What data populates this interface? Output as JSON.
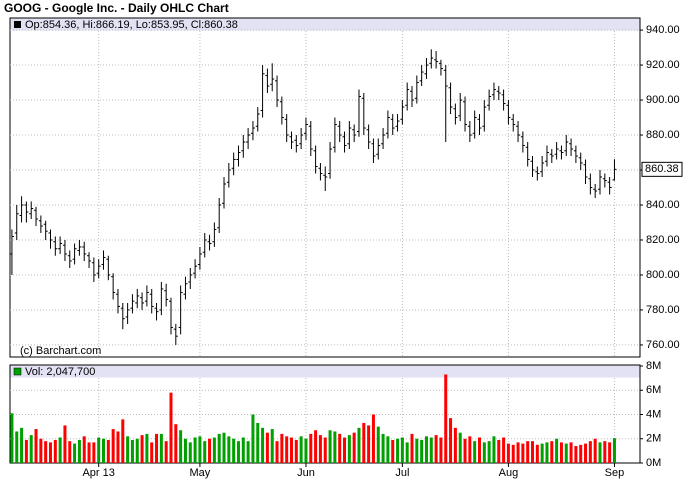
{
  "chart_data": {
    "type": "ohlc",
    "title": "GOOG - Google Inc. - Daily OHLC Chart",
    "legend_text": "Op:854.36, Hi:866.19, Lo:853.95, Cl:860.38",
    "last_label": "860.38",
    "last_value": 860.38,
    "copyright": "(c) Barchart.com",
    "volume_legend": "Vol: 2,047,700",
    "color": "#000000",
    "up_color": "#00a000",
    "down_color": "#ff0000",
    "grid": true,
    "xlim": [
      -0.4,
      130.3
    ],
    "xticks": [
      {
        "value": 18,
        "label": "Apr 13"
      },
      {
        "value": 39,
        "label": "May"
      },
      {
        "value": 61,
        "label": "Jun"
      },
      {
        "value": 81,
        "label": "Jul"
      },
      {
        "value": 103,
        "label": "Aug"
      },
      {
        "value": 125,
        "label": "Sep"
      }
    ],
    "ylim": [
      753.1,
      946.9
    ],
    "yticks": [
      {
        "value": 760,
        "label": "760.00"
      },
      {
        "value": 780,
        "label": "780.00"
      },
      {
        "value": 800,
        "label": "800.00"
      },
      {
        "value": 820,
        "label": "820.00"
      },
      {
        "value": 840,
        "label": "840.00"
      },
      {
        "value": 860,
        "label": "860.00"
      },
      {
        "value": 880,
        "label": "880.00"
      },
      {
        "value": 900,
        "label": "900.00"
      },
      {
        "value": 920,
        "label": "920.00"
      },
      {
        "value": 940,
        "label": "940.00"
      }
    ],
    "y2lim": [
      0,
      8000000
    ],
    "y2ticks": [
      {
        "value": 0,
        "label": "0M"
      },
      {
        "value": 2000000,
        "label": "2M"
      },
      {
        "value": 4000000,
        "label": "4M"
      },
      {
        "value": 6000000,
        "label": "6M"
      },
      {
        "value": 8000000,
        "label": "8M"
      }
    ],
    "ohlc": [
      [
        812,
        826,
        800,
        822
      ],
      [
        824,
        840,
        820,
        835
      ],
      [
        834,
        845,
        830,
        840
      ],
      [
        840,
        842,
        830,
        836
      ],
      [
        835,
        842,
        832,
        838
      ],
      [
        837,
        839,
        828,
        832
      ],
      [
        831,
        834,
        824,
        828
      ],
      [
        829,
        831,
        820,
        825
      ],
      [
        824,
        826,
        815,
        820
      ],
      [
        819,
        822,
        811,
        815
      ],
      [
        815,
        822,
        812,
        818
      ],
      [
        817,
        820,
        808,
        812
      ],
      [
        811,
        814,
        804,
        808
      ],
      [
        809,
        818,
        806,
        815
      ],
      [
        814,
        820,
        811,
        816
      ],
      [
        816,
        819,
        808,
        812
      ],
      [
        811,
        813,
        804,
        808
      ],
      [
        807,
        810,
        796,
        800
      ],
      [
        801,
        809,
        798,
        805
      ],
      [
        806,
        814,
        803,
        810
      ],
      [
        809,
        811,
        797,
        800
      ],
      [
        799,
        801,
        786,
        790
      ],
      [
        789,
        792,
        778,
        782
      ],
      [
        781,
        784,
        769,
        775
      ],
      [
        776,
        784,
        772,
        780
      ],
      [
        781,
        789,
        778,
        785
      ],
      [
        784,
        792,
        781,
        788
      ],
      [
        787,
        790,
        780,
        784
      ],
      [
        785,
        794,
        782,
        790
      ],
      [
        789,
        792,
        778,
        782
      ],
      [
        781,
        784,
        774,
        779
      ],
      [
        780,
        796,
        777,
        792
      ],
      [
        791,
        795,
        782,
        786
      ],
      [
        785,
        787,
        766,
        770
      ],
      [
        769,
        772,
        760,
        765
      ],
      [
        770,
        794,
        766,
        790
      ],
      [
        789,
        799,
        786,
        795
      ],
      [
        796,
        804,
        792,
        800
      ],
      [
        801,
        809,
        798,
        805
      ],
      [
        806,
        816,
        803,
        812
      ],
      [
        813,
        824,
        810,
        820
      ],
      [
        819,
        823,
        814,
        818
      ],
      [
        819,
        830,
        816,
        826
      ],
      [
        827,
        844,
        824,
        840
      ],
      [
        841,
        856,
        838,
        852
      ],
      [
        853,
        864,
        850,
        860
      ],
      [
        861,
        870,
        857,
        866
      ],
      [
        866,
        874,
        862,
        870
      ],
      [
        871,
        880,
        867,
        876
      ],
      [
        876,
        884,
        872,
        880
      ],
      [
        881,
        888,
        877,
        884
      ],
      [
        885,
        896,
        882,
        892
      ],
      [
        894,
        920,
        890,
        915
      ],
      [
        914,
        918,
        904,
        908
      ],
      [
        909,
        921,
        905,
        912
      ],
      [
        911,
        914,
        896,
        900
      ],
      [
        899,
        902,
        886,
        890
      ],
      [
        889,
        892,
        876,
        880
      ],
      [
        879,
        882,
        872,
        876
      ],
      [
        877,
        880,
        870,
        874
      ],
      [
        875,
        884,
        872,
        880
      ],
      [
        881,
        890,
        877,
        886
      ],
      [
        885,
        888,
        868,
        872
      ],
      [
        871,
        874,
        858,
        862
      ],
      [
        861,
        864,
        854,
        858
      ],
      [
        857,
        862,
        848,
        856
      ],
      [
        858,
        876,
        855,
        872
      ],
      [
        873,
        890,
        870,
        886
      ],
      [
        885,
        888,
        876,
        880
      ],
      [
        879,
        882,
        870,
        874
      ],
      [
        875,
        888,
        872,
        884
      ],
      [
        883,
        886,
        876,
        880
      ],
      [
        882,
        906,
        879,
        902
      ],
      [
        901,
        904,
        880,
        884
      ],
      [
        883,
        886,
        872,
        876
      ],
      [
        875,
        878,
        864,
        868
      ],
      [
        869,
        878,
        866,
        874
      ],
      [
        875,
        884,
        872,
        880
      ],
      [
        881,
        894,
        878,
        890
      ],
      [
        889,
        892,
        880,
        884
      ],
      [
        885,
        892,
        882,
        888
      ],
      [
        889,
        900,
        886,
        896
      ],
      [
        897,
        910,
        894,
        906
      ],
      [
        905,
        908,
        896,
        900
      ],
      [
        901,
        914,
        898,
        910
      ],
      [
        911,
        920,
        908,
        916
      ],
      [
        915,
        924,
        912,
        920
      ],
      [
        921,
        929,
        918,
        924
      ],
      [
        923,
        928,
        918,
        922
      ],
      [
        921,
        923,
        914,
        918
      ],
      [
        917,
        920,
        876,
        908
      ],
      [
        907,
        910,
        892,
        896
      ],
      [
        895,
        898,
        886,
        890
      ],
      [
        891,
        904,
        888,
        900
      ],
      [
        899,
        902,
        882,
        886
      ],
      [
        885,
        888,
        876,
        880
      ],
      [
        881,
        894,
        878,
        890
      ],
      [
        889,
        892,
        880,
        884
      ],
      [
        885,
        900,
        882,
        896
      ],
      [
        897,
        906,
        894,
        902
      ],
      [
        903,
        910,
        900,
        906
      ],
      [
        905,
        908,
        900,
        904
      ],
      [
        903,
        906,
        894,
        898
      ],
      [
        897,
        900,
        886,
        890
      ],
      [
        889,
        892,
        882,
        886
      ],
      [
        885,
        888,
        876,
        880
      ],
      [
        879,
        882,
        870,
        874
      ],
      [
        873,
        876,
        862,
        866
      ],
      [
        865,
        868,
        856,
        860
      ],
      [
        859,
        862,
        854,
        858
      ],
      [
        859,
        868,
        856,
        864
      ],
      [
        865,
        874,
        862,
        870
      ],
      [
        869,
        872,
        864,
        868
      ],
      [
        869,
        876,
        866,
        872
      ],
      [
        871,
        874,
        866,
        870
      ],
      [
        871,
        880,
        868,
        876
      ],
      [
        875,
        878,
        868,
        872
      ],
      [
        871,
        874,
        864,
        868
      ],
      [
        867,
        870,
        860,
        864
      ],
      [
        863,
        866,
        852,
        856
      ],
      [
        855,
        858,
        846,
        850
      ],
      [
        849,
        852,
        844,
        848
      ],
      [
        849,
        860,
        846,
        856
      ],
      [
        855,
        858,
        850,
        854
      ],
      [
        853,
        856,
        846,
        850
      ],
      [
        854.36,
        866.19,
        853.95,
        860.38
      ]
    ],
    "volume": [
      4100000,
      2600000,
      2900000,
      1900000,
      2300000,
      2800000,
      2000000,
      1800000,
      1700000,
      1900000,
      2100000,
      3100000,
      1800000,
      1600000,
      1900000,
      2200000,
      1700000,
      1700000,
      2100000,
      2000000,
      1900000,
      2800000,
      2600000,
      3600000,
      2200000,
      1900000,
      2000000,
      2300000,
      2400000,
      1700000,
      2400000,
      2400000,
      1800000,
      5800000,
      3200000,
      2700000,
      2000000,
      1700000,
      2100000,
      2200000,
      1800000,
      2000000,
      2100000,
      2400000,
      2500000,
      2200000,
      2000000,
      1800000,
      2100000,
      1800000,
      4000000,
      3300000,
      2900000,
      2500000,
      2800000,
      1800000,
      2400000,
      2200000,
      2100000,
      1900000,
      2200000,
      2000000,
      2400000,
      2700000,
      2300000,
      2100000,
      2700000,
      2600000,
      2400000,
      2100000,
      2300000,
      2500000,
      2900000,
      3300000,
      3100000,
      4000000,
      3000000,
      2400000,
      2200000,
      1900000,
      2000000,
      2100000,
      1700000,
      2400000,
      2000000,
      1900000,
      2200000,
      2100000,
      2300000,
      2100000,
      7300000,
      3700000,
      2900000,
      2500000,
      2000000,
      2200000,
      1800000,
      2100000,
      1700000,
      1800000,
      2200000,
      1900000,
      2100000,
      1600000,
      1500000,
      1700000,
      1600000,
      1800000,
      1800000,
      1500000,
      1600000,
      1700000,
      1800000,
      2000000,
      1700000,
      1600000,
      1700000,
      1400000,
      1500000,
      1600000,
      1800000,
      2000000,
      1700000,
      1800000,
      1700000,
      2047700
    ]
  }
}
